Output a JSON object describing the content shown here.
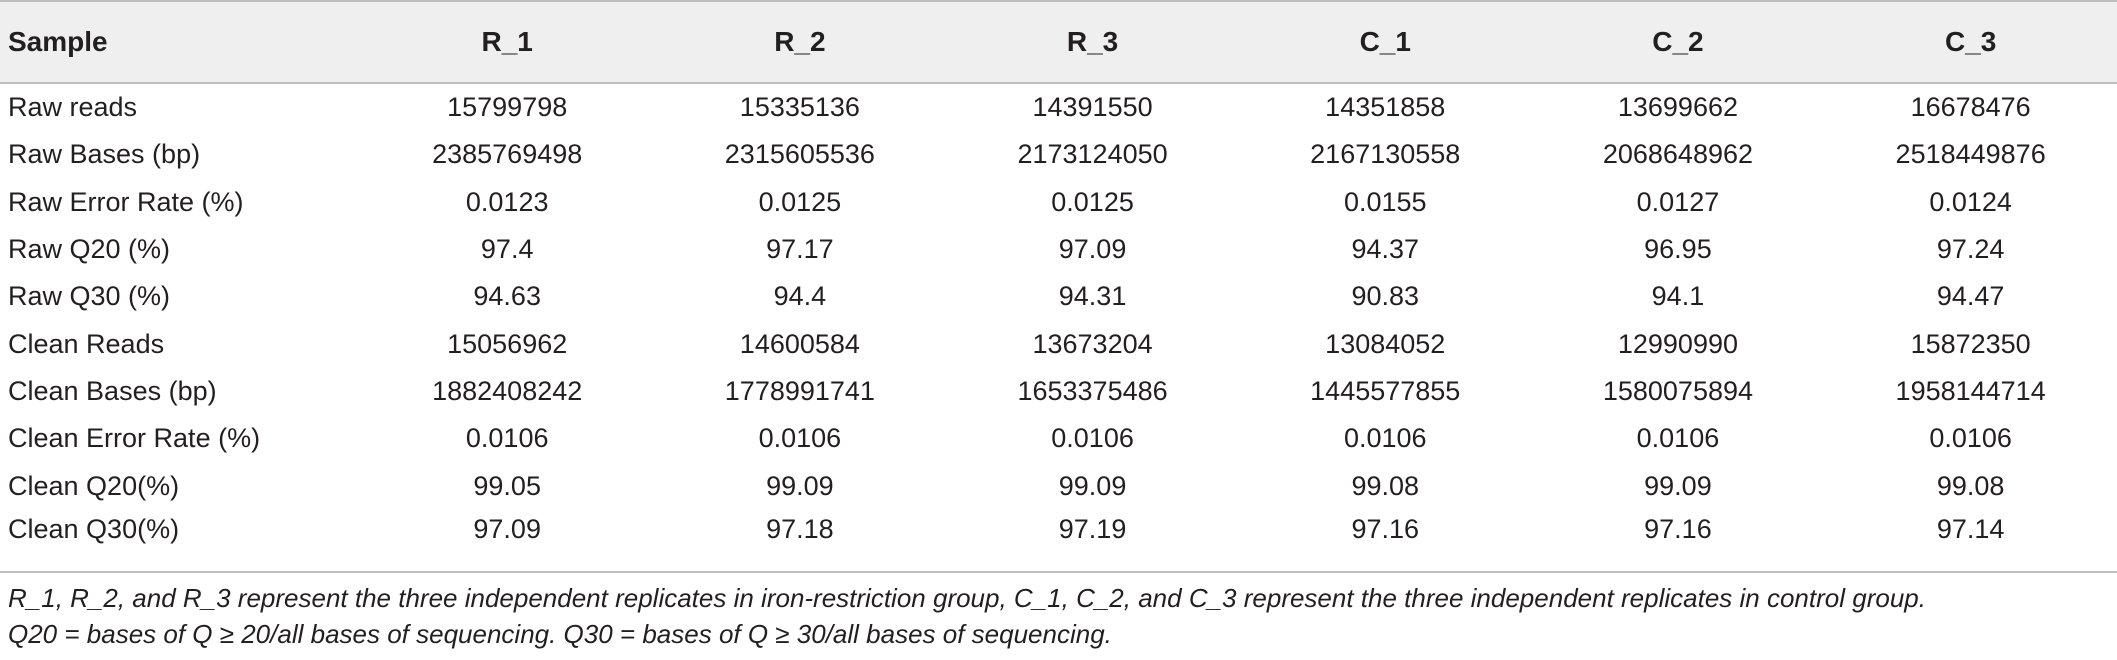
{
  "table": {
    "headers": [
      "Sample",
      "R_1",
      "R_2",
      "R_3",
      "C_1",
      "C_2",
      "C_3"
    ],
    "rows": [
      {
        "label": "Raw reads",
        "values": [
          "15799798",
          "15335136",
          "14391550",
          "14351858",
          "13699662",
          "16678476"
        ]
      },
      {
        "label": "Raw Bases (bp)",
        "values": [
          "2385769498",
          "2315605536",
          "2173124050",
          "2167130558",
          "2068648962",
          "2518449876"
        ]
      },
      {
        "label": "Raw Error Rate (%)",
        "values": [
          "0.0123",
          "0.0125",
          "0.0125",
          "0.0155",
          "0.0127",
          "0.0124"
        ]
      },
      {
        "label": "Raw Q20 (%)",
        "values": [
          "97.4",
          "97.17",
          "97.09",
          "94.37",
          "96.95",
          "97.24"
        ]
      },
      {
        "label": "Raw Q30 (%)",
        "values": [
          "94.63",
          "94.4",
          "94.31",
          "90.83",
          "94.1",
          "94.47"
        ]
      },
      {
        "label": "Clean Reads",
        "values": [
          "15056962",
          "14600584",
          "13673204",
          "13084052",
          "12990990",
          "15872350"
        ]
      },
      {
        "label": "Clean Bases (bp)",
        "values": [
          "1882408242",
          "1778991741",
          "1653375486",
          "1445577855",
          "1580075894",
          "1958144714"
        ]
      },
      {
        "label": "Clean Error Rate (%)",
        "values": [
          "0.0106",
          "0.0106",
          "0.0106",
          "0.0106",
          "0.0106",
          "0.0106"
        ]
      },
      {
        "label": "Clean Q20(%)",
        "values": [
          "99.05",
          "99.09",
          "99.09",
          "99.08",
          "99.09",
          "99.08"
        ]
      },
      {
        "label": "Clean Q30(%)",
        "values": [
          "97.09",
          "97.18",
          "97.19",
          "97.16",
          "97.16",
          "97.14"
        ]
      }
    ]
  },
  "footnote": {
    "line1": "R_1, R_2, and R_3 represent the three independent replicates in iron-restriction group, C_1, C_2, and C_3 represent the three independent replicates in control group.",
    "line2": "Q20 = bases of Q ≥ 20/all bases of sequencing. Q30 = bases of Q ≥ 30/all bases of sequencing."
  }
}
